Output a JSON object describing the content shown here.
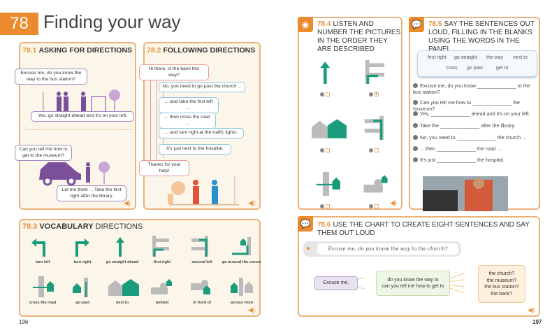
{
  "unit": {
    "number": "78",
    "title": "Finding your way"
  },
  "ex1": {
    "num": "78.1",
    "title": "ASKING FOR DIRECTIONS",
    "bubbles": [
      "Excuse me, do you know the way to the bus station?",
      "Yes, go straight ahead and it's on your left.",
      "Can you tell me how to get to the museum?",
      "Let me think ... Take the first right after the library."
    ]
  },
  "ex2": {
    "num": "78.2",
    "title": "FOLLOWING DIRECTIONS",
    "question": "Hi there, is the bank this way?",
    "answers": [
      "No, you need to go past the church ...",
      "... and take the first left ...",
      "... then cross the road ...",
      "... and turn right at the traffic lights.",
      "It's just next to the hospital."
    ],
    "thanks": "Thanks for your help!"
  },
  "ex3": {
    "num": "78.3",
    "title_bold": "VOCABULARY",
    "title_rest": "DIRECTIONS",
    "items": [
      "turn left",
      "turn right",
      "go straight ahead",
      "first right",
      "second left",
      "go around the corner",
      "cross the road",
      "go past",
      "next to",
      "behind",
      "in front of",
      "across from"
    ]
  },
  "ex4": {
    "num": "78.4",
    "title": "LISTEN AND NUMBER THE PICTURES IN THE ORDER THEY ARE DESCRIBED",
    "options": [
      {
        "letter": "A",
        "answer": ""
      },
      {
        "letter": "B",
        "answer": "1"
      },
      {
        "letter": "C",
        "answer": ""
      },
      {
        "letter": "D",
        "answer": ""
      },
      {
        "letter": "E",
        "answer": ""
      },
      {
        "letter": "F",
        "answer": ""
      }
    ]
  },
  "ex5": {
    "num": "78.5",
    "title": "SAY THE SENTENCES OUT LOUD, FILLING IN THE BLANKS USING THE WORDS IN THE PANEL",
    "words": [
      "first right",
      "go straight",
      "the way",
      "next to",
      "cross",
      "go past",
      "get to"
    ],
    "sentences": [
      "Excuse me, do you know ______________ to the bus station?",
      "Can you tell me how to ______________ the museum?",
      "Yes, ______________ ahead and it's on your left.",
      "Take the ______________ after the library.",
      "No, you need to ______________ the church ...",
      "... then ______________ the road ...",
      "It's just ______________ the hospital."
    ]
  },
  "ex6": {
    "num": "78.6",
    "title": "USE THE CHART TO CREATE EIGHT SENTENCES AND SAY THEM OUT LOUD",
    "example": "Excuse me, do you know the way to the church?",
    "col1": "Excuse me,",
    "col2": [
      "do you know the way to",
      "can you tell me how to get to"
    ],
    "col3": [
      "the church?",
      "the museum?",
      "the bus station?",
      "the bank?"
    ]
  },
  "pages": {
    "left": "196",
    "right": "197"
  },
  "colors": {
    "accent": "#ec8a2e",
    "green": "#1a9c7c",
    "purple": "#7b4f9a"
  }
}
